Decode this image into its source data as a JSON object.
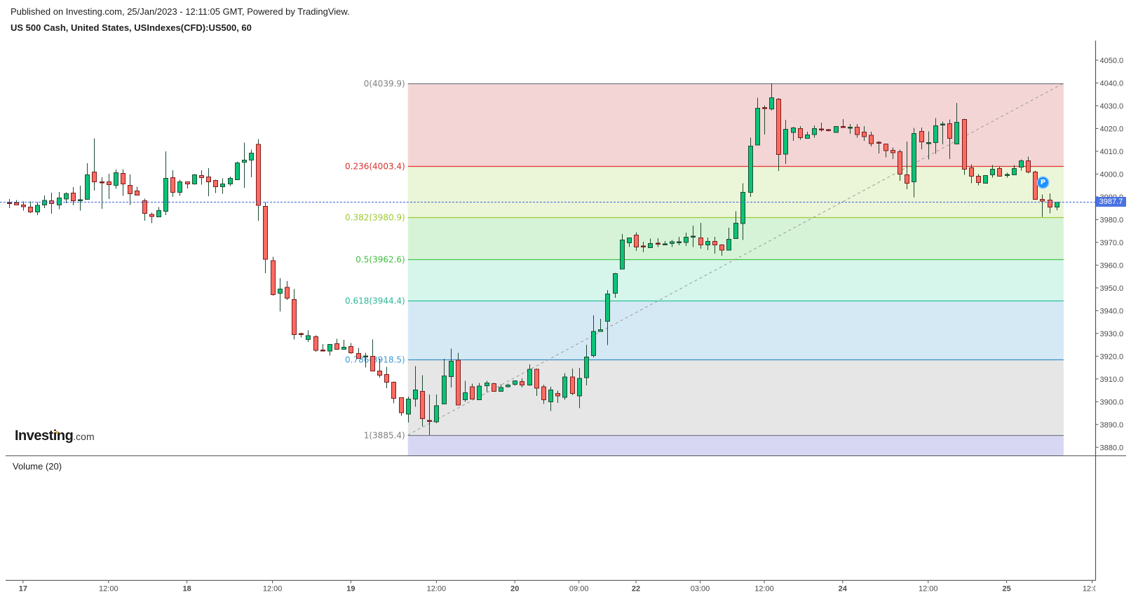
{
  "header": {
    "published": "Published on Investing.com, 25/Jan/2023 - 12:11:05 GMT, Powered by TradingView.",
    "symbol": "US 500 Cash, United States, USIndexes(CFD):US500, 60"
  },
  "logo": {
    "brand": "Investing",
    "suffix": ".com"
  },
  "volume_pane": {
    "label": "Volume (20)"
  },
  "price_axis": {
    "current_price_label": "3987.7"
  },
  "markers": {
    "p_marker": {
      "label": "P",
      "index": 145.1,
      "price": 3996.2
    }
  },
  "colors": {
    "up_fill": "#0bc277",
    "up_border": "#1b4d32",
    "down_fill": "#ff6b61",
    "down_border": "#7a1e1e",
    "wick": "#1d4a30",
    "price_line": "#3f66da",
    "price_tag_bg": "#4a72e3",
    "axis": "#555555",
    "axis_text": "#4a4a4a",
    "trend_line": "#9a9a9a",
    "p_marker": "#1e90ff"
  },
  "chart_data": {
    "type": "bar",
    "chart_style": "candlestick",
    "title": "US 500 Cash, United States, USIndexes(CFD):US500, 60",
    "interval": "60",
    "xlabel": "",
    "ylabel": "",
    "ylim": [
      3876.4,
      4058.6
    ],
    "grid": false,
    "legend_position": "none",
    "last_price": 3987.7,
    "yticks": [
      4050.0,
      4040.0,
      4030.0,
      4020.0,
      4010.0,
      4000.0,
      3990.0,
      3980.0,
      3970.0,
      3960.0,
      3950.0,
      3940.0,
      3930.0,
      3920.0,
      3910.0,
      3900.0,
      3890.0,
      3880.0
    ],
    "ytick_labels": [
      "4050.0",
      "4040.0",
      "4030.0",
      "4020.0",
      "4010.0",
      "4000.0",
      "3990.0",
      "3980.0",
      "3970.0",
      "3960.0",
      "3950.0",
      "3940.0",
      "3930.0",
      "3920.0",
      "3910.0",
      "3900.0",
      "3890.0",
      "3880.0"
    ],
    "xtick_labels": [
      {
        "label": "17",
        "index": 2,
        "bold": true
      },
      {
        "label": "12:00",
        "index": 14,
        "bold": false
      },
      {
        "label": "18",
        "index": 25,
        "bold": true
      },
      {
        "label": "12:00",
        "index": 37,
        "bold": false
      },
      {
        "label": "19",
        "index": 48,
        "bold": true
      },
      {
        "label": "12:00",
        "index": 60,
        "bold": false
      },
      {
        "label": "20",
        "index": 71,
        "bold": true
      },
      {
        "label": "09:00",
        "index": 80,
        "bold": false
      },
      {
        "label": "22",
        "index": 88,
        "bold": true
      },
      {
        "label": "03:00",
        "index": 97,
        "bold": false
      },
      {
        "label": "12:00",
        "index": 106,
        "bold": false
      },
      {
        "label": "24",
        "index": 117,
        "bold": true
      },
      {
        "label": "12:00",
        "index": 129,
        "bold": false
      },
      {
        "label": "25",
        "index": 140,
        "bold": true
      },
      {
        "label": "12:00",
        "index": 152,
        "bold": false
      }
    ],
    "ohlc_fields": [
      "open",
      "high",
      "low",
      "close"
    ],
    "candles": [
      [
        3987.4,
        3989.0,
        3985.1,
        3987.2
      ],
      [
        3987.4,
        3988.6,
        3986.2,
        3986.5
      ],
      [
        3986.5,
        3987.9,
        3983.9,
        3985.7
      ],
      [
        3985.5,
        3987.9,
        3982.9,
        3983.4
      ],
      [
        3983.4,
        3987.7,
        3982.0,
        3986.2
      ],
      [
        3986.5,
        3990.6,
        3985.1,
        3988.5
      ],
      [
        3988.3,
        3991.8,
        3982.6,
        3987.1
      ],
      [
        3986.5,
        3992.1,
        3984.6,
        3989.5
      ],
      [
        3989.1,
        3991.9,
        3987.2,
        3991.4
      ],
      [
        3991.7,
        3994.2,
        3986.3,
        3988.2
      ],
      [
        3988.1,
        3994.9,
        3983.9,
        3988.6
      ],
      [
        3988.9,
        4004.7,
        3988.9,
        3999.7
      ],
      [
        4000.9,
        4015.7,
        3992.8,
        3996.6
      ],
      [
        3996.5,
        3998.6,
        3984.8,
        3996.3
      ],
      [
        3996.6,
        4000.1,
        3989.1,
        3995.4
      ],
      [
        3995.1,
        4001.9,
        3993.5,
        4000.6
      ],
      [
        4000.3,
        4002.2,
        3990.5,
        3995.7
      ],
      [
        3995.1,
        3999.8,
        3986.5,
        3991.4
      ],
      [
        3992.6,
        3994.5,
        3990.6,
        3990.8
      ],
      [
        3988.2,
        3989.2,
        3979.5,
        3982.8
      ],
      [
        3982.2,
        3983.1,
        3978.5,
        3981.4
      ],
      [
        3981.2,
        3985.5,
        3981.0,
        3984.0
      ],
      [
        3983.7,
        4009.9,
        3982.0,
        3998.2
      ],
      [
        3998.5,
        4001.6,
        3990.0,
        3991.9
      ],
      [
        3991.9,
        3997.5,
        3990.5,
        3996.6
      ],
      [
        3996.6,
        3996.8,
        3993.7,
        3995.7
      ],
      [
        3995.7,
        4000.0,
        3995.4,
        3999.7
      ],
      [
        3999.4,
        4001.6,
        3995.3,
        3998.5
      ],
      [
        3998.8,
        4002.6,
        3990.2,
        3996.6
      ],
      [
        3997.2,
        3997.5,
        3991.6,
        3994.5
      ],
      [
        3994.5,
        3998.2,
        3991.3,
        3995.7
      ],
      [
        3995.7,
        3998.9,
        3994.8,
        3998.2
      ],
      [
        3997.5,
        4005.5,
        3997.3,
        4004.9
      ],
      [
        4005.2,
        4013.8,
        3994.0,
        4006.2
      ],
      [
        4006.2,
        4010.8,
        3998.6,
        4009.2
      ],
      [
        4013.1,
        4015.4,
        3979.5,
        3986.2
      ],
      [
        3985.8,
        3987.7,
        3956.4,
        3962.5
      ],
      [
        3962.0,
        3963.6,
        3946.5,
        3947.1
      ],
      [
        3947.7,
        3954.2,
        3939.7,
        3949.5
      ],
      [
        3950.2,
        3953.0,
        3944.8,
        3945.5
      ],
      [
        3944.9,
        3949.5,
        3927.4,
        3929.5
      ],
      [
        3929.8,
        3930.2,
        3928.2,
        3929.7
      ],
      [
        3927.4,
        3931.3,
        3926.3,
        3929.1
      ],
      [
        3928.6,
        3929.2,
        3922.0,
        3922.5
      ],
      [
        3922.6,
        3925.4,
        3922.3,
        3922.5
      ],
      [
        3922.2,
        3925.3,
        3920.2,
        3925.2
      ],
      [
        3925.5,
        3927.7,
        3922.9,
        3923.1
      ],
      [
        3923.1,
        3927.2,
        3923.0,
        3924.0
      ],
      [
        3924.3,
        3925.8,
        3921.0,
        3921.5
      ],
      [
        3921.2,
        3923.7,
        3918.9,
        3919.1
      ],
      [
        3919.9,
        3921.5,
        3915.1,
        3920.0
      ],
      [
        3920.0,
        3927.4,
        3913.3,
        3913.5
      ],
      [
        3913.5,
        3918.8,
        3910.6,
        3911.7
      ],
      [
        3912.0,
        3915.4,
        3906.0,
        3908.6
      ],
      [
        3908.6,
        3908.9,
        3899.3,
        3901.5
      ],
      [
        3901.8,
        3902.0,
        3893.8,
        3895.1
      ],
      [
        3894.5,
        3902.2,
        3890.8,
        3901.2
      ],
      [
        3901.2,
        3915.7,
        3897.8,
        3905.2
      ],
      [
        3904.6,
        3911.7,
        3889.2,
        3892.6
      ],
      [
        3891.7,
        3903.1,
        3885.4,
        3891.1
      ],
      [
        3891.1,
        3903.1,
        3890.5,
        3898.2
      ],
      [
        3899.0,
        3918.8,
        3898.9,
        3911.4
      ],
      [
        3911.1,
        3923.4,
        3906.2,
        3917.8
      ],
      [
        3918.2,
        3921.5,
        3898.4,
        3898.5
      ],
      [
        3900.9,
        3909.2,
        3900.0,
        3904.0
      ],
      [
        3906.5,
        3908.0,
        3901.0,
        3901.2
      ],
      [
        3900.9,
        3908.3,
        3900.8,
        3906.8
      ],
      [
        3907.1,
        3909.2,
        3904.3,
        3908.3
      ],
      [
        3908.0,
        3908.3,
        3904.5,
        3904.6
      ],
      [
        3904.6,
        3907.7,
        3904.5,
        3906.2
      ],
      [
        3906.5,
        3908.0,
        3906.2,
        3907.4
      ],
      [
        3907.7,
        3909.3,
        3907.1,
        3909.2
      ],
      [
        3908.9,
        3910.2,
        3906.3,
        3907.4
      ],
      [
        3907.3,
        3916.4,
        3907.0,
        3914.2
      ],
      [
        3914.2,
        3914.6,
        3902.6,
        3906.0
      ],
      [
        3906.5,
        3907.5,
        3899.0,
        3900.9
      ],
      [
        3900.0,
        3906.5,
        3895.9,
        3905.2
      ],
      [
        3903.7,
        3904.9,
        3899.5,
        3902.6
      ],
      [
        3902.0,
        3912.6,
        3900.8,
        3910.8
      ],
      [
        3910.8,
        3914.6,
        3902.9,
        3903.6
      ],
      [
        3902.6,
        3914.9,
        3897.1,
        3910.2
      ],
      [
        3910.6,
        3925.0,
        3907.2,
        3919.7
      ],
      [
        3920.2,
        3937.9,
        3919.5,
        3930.8
      ],
      [
        3930.8,
        3936.4,
        3930.7,
        3931.7
      ],
      [
        3935.3,
        3949.0,
        3924.8,
        3947.4
      ],
      [
        3947.7,
        3956.6,
        3945.6,
        3956.3
      ],
      [
        3958.2,
        3973.6,
        3958.1,
        3971.1
      ],
      [
        3969.8,
        3972.1,
        3967.9,
        3972.0
      ],
      [
        3973.2,
        3974.5,
        3966.3,
        3968.0
      ],
      [
        3968.2,
        3970.2,
        3965.6,
        3968.0
      ],
      [
        3967.7,
        3971.6,
        3967.6,
        3969.5
      ],
      [
        3969.5,
        3971.8,
        3967.9,
        3968.9
      ],
      [
        3969.1,
        3970.6,
        3969.0,
        3969.2
      ],
      [
        3969.5,
        3971.0,
        3967.9,
        3970.2
      ],
      [
        3970.0,
        3972.4,
        3968.7,
        3970.1
      ],
      [
        3970.0,
        3974.2,
        3968.5,
        3972.3
      ],
      [
        3972.5,
        3977.3,
        3967.9,
        3972.6
      ],
      [
        3972.0,
        3978.6,
        3967.2,
        3968.9
      ],
      [
        3968.9,
        3972.1,
        3966.6,
        3970.5
      ],
      [
        3970.5,
        3972.4,
        3965.1,
        3968.9
      ],
      [
        3968.9,
        3969.2,
        3964.1,
        3966.5
      ],
      [
        3966.5,
        3976.4,
        3966.4,
        3971.4
      ],
      [
        3971.7,
        3983.6,
        3971.6,
        3978.5
      ],
      [
        3978.3,
        3996.0,
        3971.0,
        3992.0
      ],
      [
        3992.0,
        4016.0,
        3990.0,
        4012.3
      ],
      [
        4012.8,
        4033.5,
        4012.7,
        4028.9
      ],
      [
        4029.0,
        4030.2,
        4017.4,
        4028.9
      ],
      [
        4028.6,
        4039.9,
        4028.0,
        4033.5
      ],
      [
        4032.9,
        4033.3,
        4001.4,
        4008.6
      ],
      [
        4008.8,
        4023.8,
        4004.5,
        4019.7
      ],
      [
        4018.3,
        4020.8,
        4014.6,
        4020.3
      ],
      [
        4020.0,
        4021.0,
        4015.1,
        4015.9
      ],
      [
        4015.7,
        4018.6,
        4015.6,
        4017.2
      ],
      [
        4017.4,
        4021.3,
        4015.9,
        4020.0
      ],
      [
        4019.7,
        4022.6,
        4018.6,
        4019.6
      ],
      [
        4019.4,
        4019.8,
        4018.7,
        4018.8
      ],
      [
        4018.3,
        4021.0,
        4018.2,
        4020.9
      ],
      [
        4020.7,
        4024.1,
        4020.5,
        4020.6
      ],
      [
        4020.3,
        4021.9,
        4017.7,
        4020.5
      ],
      [
        4020.6,
        4021.9,
        4015.9,
        4017.4
      ],
      [
        4018.5,
        4021.0,
        4014.6,
        4016.5
      ],
      [
        4017.0,
        4018.6,
        4012.2,
        4013.4
      ],
      [
        4013.8,
        4014.5,
        4009.1,
        4013.7
      ],
      [
        4013.2,
        4013.3,
        4007.3,
        4010.3
      ],
      [
        4010.5,
        4011.6,
        4006.6,
        4009.4
      ],
      [
        4009.8,
        4010.8,
        3997.1,
        3999.9
      ],
      [
        3999.7,
        4014.3,
        3993.4,
        3996.0
      ],
      [
        3996.6,
        4020.3,
        3989.8,
        4017.8
      ],
      [
        4018.8,
        4020.4,
        4010.9,
        4014.2
      ],
      [
        4013.5,
        4018.8,
        4006.5,
        4013.6
      ],
      [
        4013.8,
        4024.6,
        4008.9,
        4021.2
      ],
      [
        4021.2,
        4023.1,
        4013.1,
        4021.8
      ],
      [
        4022.2,
        4024.0,
        4006.6,
        4015.7
      ],
      [
        4013.2,
        4031.2,
        4013.1,
        4022.8
      ],
      [
        4024.0,
        4024.3,
        3999.7,
        4002.2
      ],
      [
        4002.8,
        4004.3,
        3996.0,
        3999.1
      ],
      [
        3999.1,
        4000.0,
        3995.1,
        3996.3
      ],
      [
        3996.0,
        3999.5,
        3995.9,
        3999.4
      ],
      [
        3999.7,
        4004.0,
        3998.5,
        4002.2
      ],
      [
        4002.5,
        4003.4,
        3999.0,
        3999.1
      ],
      [
        3999.6,
        4000.6,
        3998.5,
        3999.7
      ],
      [
        3999.7,
        4004.0,
        3999.6,
        4002.5
      ],
      [
        4003.1,
        4006.5,
        4001.5,
        4005.8
      ],
      [
        4005.8,
        4007.7,
        4000.3,
        4000.9
      ],
      [
        4000.9,
        4001.5,
        3988.8,
        3988.9
      ],
      [
        3988.9,
        3991.1,
        3981.2,
        3988.1
      ],
      [
        3988.6,
        3991.5,
        3982.8,
        3985.5
      ],
      [
        3985.5,
        3987.8,
        3984.1,
        3987.7
      ]
    ],
    "fibonacci": {
      "from_index": 56,
      "to_index": 148,
      "levels": [
        {
          "ratio": "0",
          "price": 4039.9,
          "label": "0(4039.9)",
          "line_color": "#787b86",
          "label_color": "#808080",
          "zone_fill": "#f4d5d6"
        },
        {
          "ratio": "0.236",
          "price": 4003.4,
          "label": "0.236(4003.4)",
          "line_color": "#e0322f",
          "label_color": "#d9302c",
          "zone_fill": "#ebf5d7"
        },
        {
          "ratio": "0.382",
          "price": 3980.9,
          "label": "0.382(3980.9)",
          "line_color": "#9ccb3a",
          "label_color": "#9ccb2e",
          "zone_fill": "#d7f3d7"
        },
        {
          "ratio": "0.5",
          "price": 3962.6,
          "label": "0.5(3962.6)",
          "line_color": "#46c446",
          "label_color": "#3dbf3d",
          "zone_fill": "#d6f5eb"
        },
        {
          "ratio": "0.618",
          "price": 3944.4,
          "label": "0.618(3944.4)",
          "line_color": "#2bc09b",
          "label_color": "#2ab896",
          "zone_fill": "#d5e9f4"
        },
        {
          "ratio": "0.786",
          "price": 3918.5,
          "label": "0.786(3918.5)",
          "line_color": "#3b90c6",
          "label_color": "#3d9bd3",
          "zone_fill": "#e6e6e6"
        },
        {
          "ratio": "1",
          "price": 3885.4,
          "label": "1(3885.4)",
          "line_color": "#787b86",
          "label_color": "#808080",
          "zone_fill": "#d7d7f4"
        }
      ]
    },
    "trend_line": {
      "from_index": 56,
      "from_price": 3885.4,
      "to_index": 148,
      "to_price": 4039.9,
      "style": "dashed"
    },
    "volume": {
      "label": "Volume (20)",
      "values": []
    }
  }
}
